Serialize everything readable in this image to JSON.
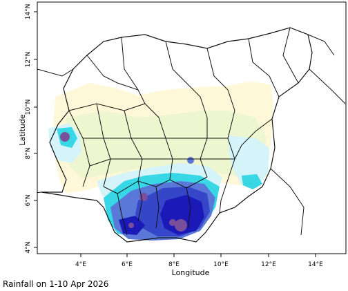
{
  "map": {
    "x_axis": {
      "label": "Longitude",
      "ticks": [
        "4°E",
        "6°E",
        "8°E",
        "10°E",
        "12°E",
        "14°E"
      ]
    },
    "y_axis": {
      "label": "Latitude",
      "ticks": [
        "4°N",
        "6°N",
        "8°N",
        "10°N",
        "12°N",
        "14°N"
      ]
    },
    "extent": {
      "lon": [
        2.2,
        15.2
      ],
      "lat": [
        3.8,
        14.4
      ]
    },
    "colors": {
      "very_light": "#fff8d8",
      "light": "#eef6d0",
      "pale_cyan": "#d4f4fa",
      "cyan": "#37d7e6",
      "mid_blue": "#5a78d8",
      "blue": "#3547c8",
      "dark_blue": "#1b19b8",
      "heavy": "#7a4f9c",
      "boundary": "#111111",
      "frame": "#000000"
    }
  },
  "caption": "Rainfall on  1-10 Apr 2026"
}
